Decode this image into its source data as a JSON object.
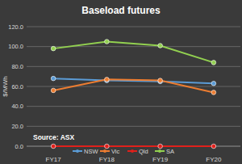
{
  "chart_data": {
    "type": "line",
    "title": "Baseload futures",
    "y_label": "$/MWh",
    "annotation": "Source: ASX",
    "categories": [
      "FY17",
      "FY18",
      "FY19",
      "FY20"
    ],
    "series": [
      {
        "name": "NSW",
        "color": "#5b9bd5",
        "values": [
          68,
          66,
          65,
          63
        ]
      },
      {
        "name": "Vic",
        "color": "#ed7d31",
        "values": [
          56,
          67,
          66,
          54
        ]
      },
      {
        "name": "Qld",
        "color": "#e0201b",
        "values": [
          0,
          0,
          0,
          0
        ]
      },
      {
        "name": "SA",
        "color": "#92d050",
        "values": [
          98,
          105,
          101,
          84
        ]
      }
    ],
    "ylim": [
      0,
      120
    ],
    "yticks": [
      {
        "value": 0,
        "label": "0.0"
      },
      {
        "value": 20,
        "label": "20.0"
      },
      {
        "value": 40,
        "label": "40.0"
      },
      {
        "value": 60,
        "label": "60.0"
      },
      {
        "value": 80,
        "label": "80.0"
      },
      {
        "value": 100,
        "label": "100.0"
      },
      {
        "value": 120,
        "label": "120.0"
      }
    ],
    "grid": true,
    "legend": "bottom",
    "marker": "circle"
  }
}
